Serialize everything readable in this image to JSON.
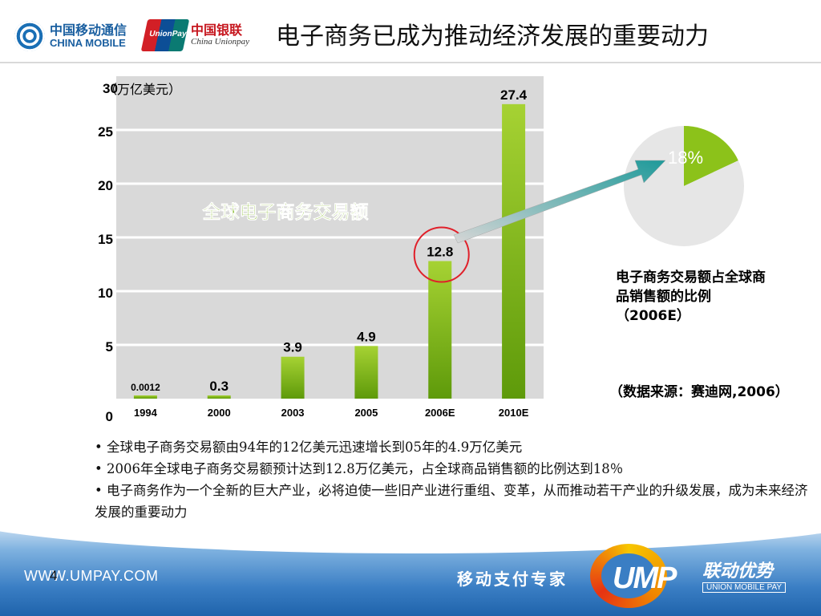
{
  "header": {
    "title": "电子商务已成为推动经济发展的重要动力",
    "china_mobile_cn": "中国移动通信",
    "china_mobile_en": "CHINA MOBILE",
    "unionpay_badge": "UnionPay",
    "unionpay_cn": "中国银联",
    "unionpay_en": "China Unionpay"
  },
  "chart_data": [
    {
      "type": "bar",
      "title": "全球电子商务交易额",
      "unit_label": "（万亿美元）",
      "categories": [
        "1994",
        "2000",
        "2003",
        "2005",
        "2006E",
        "2010E"
      ],
      "values": [
        0.0012,
        0.3,
        3.9,
        4.9,
        12.8,
        27.4
      ],
      "value_labels": [
        "0.0012",
        "0.3",
        "3.9",
        "4.9",
        "12.8",
        "27.4"
      ],
      "y_ticks": [
        "0",
        "5",
        "10",
        "15",
        "20",
        "25",
        "30"
      ],
      "ylim": [
        0,
        30
      ],
      "grid": true,
      "highlight_category": "2006E",
      "colors": {
        "bar_top": "#a6d233",
        "bar_bottom": "#5e9a0a",
        "plot_bg": "#d9d9d9",
        "title": "#7ab317",
        "highlight": "#e0202a"
      }
    },
    {
      "type": "pie",
      "slices": [
        {
          "label": "18%",
          "value": 18,
          "color": "#8cc21a"
        },
        {
          "label": "",
          "value": 82,
          "color": "#e6e6e6"
        }
      ],
      "caption": "电子商务交易额占全球商品销售额的比例（2006E）"
    }
  ],
  "source_note": "（数据来源：赛迪网,2006）",
  "bullets": [
    "• 全球电子商务交易额由94年的12亿美元迅速增长到05年的4.9万亿美元",
    "• 2006年全球电子商务交易额预计达到12.8万亿美元，占全球商品销售额的比例达到18％",
    "• 电子商务作为一个全新的巨大产业，必将迫使一些旧产业进行重组、变革，从而推动若干产业的升级发展，成为未来经济发展的重要动力"
  ],
  "footer": {
    "url": "WWW.UMPAY.COM",
    "page_number": "4",
    "slogan": "移动支付专家",
    "logo_text": "UMP",
    "logo_cn": "联动优势",
    "logo_en": "UNION MOBILE PAY"
  }
}
